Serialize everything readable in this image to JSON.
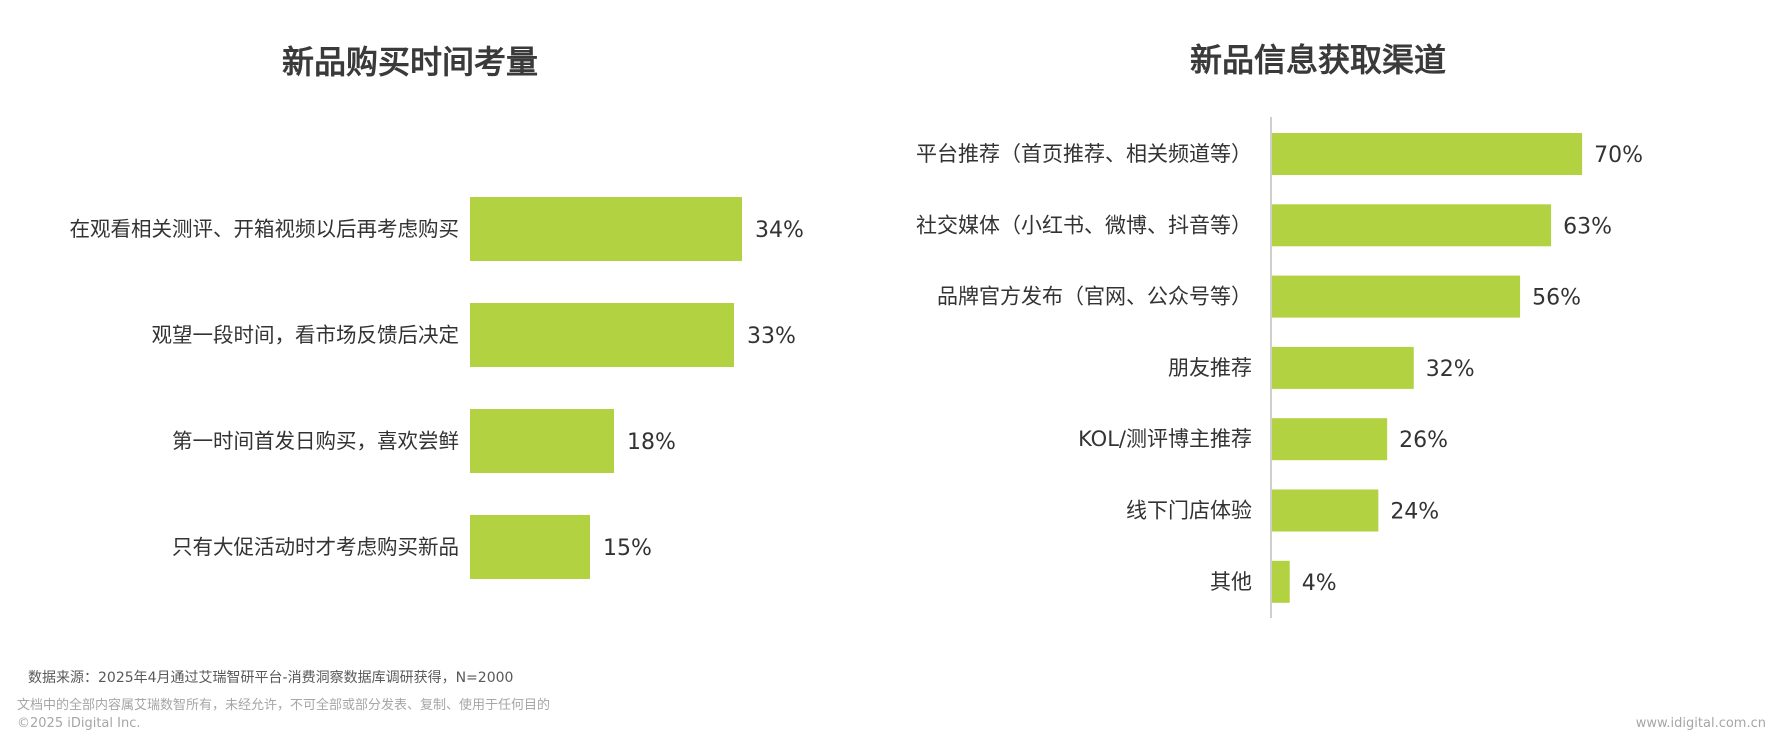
{
  "chart_data": [
    {
      "type": "bar",
      "orientation": "horizontal",
      "title": "新品购买时间考量",
      "categories": [
        "在观看相关测评、开箱视频以后再考虑购买",
        "观望一段时间，看市场反馈后决定",
        "第一时间首发日购买，喜欢尝鲜",
        "只有大促活动时才考虑购买新品"
      ],
      "values": [
        34,
        33,
        18,
        15
      ],
      "value_labels": [
        "34%",
        "33%",
        "18%",
        "15%"
      ],
      "unit": "%",
      "xlim": [
        0,
        40
      ],
      "bar_color": "#b3d242",
      "axis_line": false,
      "grid": false,
      "legend": "none"
    },
    {
      "type": "bar",
      "orientation": "horizontal",
      "title": "新品信息获取渠道",
      "categories": [
        "平台推荐（首页推荐、相关频道等）",
        "社交媒体（小红书、微博、抖音等）",
        "品牌官方发布（官网、公众号等）",
        "朋友推荐",
        "KOL/测评博主推荐",
        "线下门店体验",
        "其他"
      ],
      "values": [
        70,
        63,
        56,
        32,
        26,
        24,
        4
      ],
      "value_labels": [
        "70%",
        "63%",
        "56%",
        "32%",
        "26%",
        "24%",
        "4%"
      ],
      "unit": "%",
      "xlim": [
        0,
        100
      ],
      "bar_color": "#b3d242",
      "axis_line": true,
      "grid": false,
      "legend": "none"
    }
  ],
  "footer": {
    "source": "数据来源：2025年4月通过艾瑞智研平台-消费洞察数据库调研获得，N=2000",
    "copyright_note": "文档中的全部内容属艾瑞数智所有，未经允许，不可全部或部分发表、复制、使用于任何目的",
    "copyright": "©2025 iDigital Inc.",
    "website": "www.idigital.com.cn"
  },
  "colors": {
    "bar": "#b3d242",
    "text": "#333333",
    "title": "#3a3a3a",
    "axis": "#bfbfbf",
    "footer_dark": "#595959",
    "footer_light": "#a6a6a6"
  }
}
